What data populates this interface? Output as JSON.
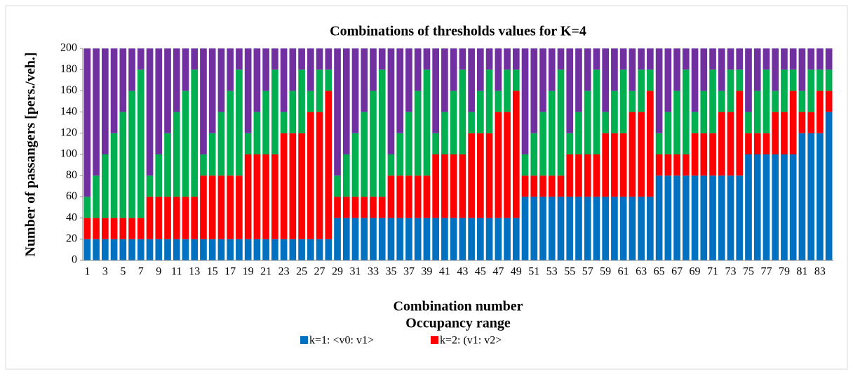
{
  "chart_data": {
    "type": "stacked_bar",
    "title": "Combinations of thresholds values for K=4",
    "x_label": "Combination number",
    "y_label": "Number of passangers [pers./veh.]",
    "legend_title": "Occupancy range",
    "categories": [
      1,
      null,
      3,
      null,
      5,
      null,
      7,
      null,
      9,
      null,
      11,
      null,
      13,
      null,
      15,
      null,
      17,
      null,
      19,
      null,
      21,
      null,
      23,
      null,
      25,
      null,
      27,
      null,
      29,
      null,
      31,
      null,
      33,
      null,
      35,
      null,
      37,
      null,
      39,
      null,
      41,
      null,
      43,
      null,
      45,
      null,
      47,
      null,
      49,
      null,
      51,
      null,
      53,
      null,
      55,
      null,
      57,
      null,
      59,
      null,
      61,
      null,
      63,
      null,
      65,
      null,
      67,
      null,
      69,
      null,
      71,
      null,
      73,
      null,
      75,
      null,
      77,
      null,
      79,
      null,
      81,
      null,
      83,
      null
    ],
    "ylim": [
      0,
      200
    ],
    "yticks": [
      0,
      20,
      40,
      60,
      80,
      100,
      120,
      140,
      160,
      180,
      200
    ],
    "series": [
      {
        "name": "k=1: <v0: v1>",
        "color": "#0070c0",
        "values": [
          20,
          20,
          20,
          20,
          20,
          20,
          20,
          20,
          20,
          20,
          20,
          20,
          20,
          20,
          20,
          20,
          20,
          20,
          20,
          20,
          20,
          20,
          20,
          20,
          20,
          20,
          20,
          20,
          40,
          40,
          40,
          40,
          40,
          40,
          40,
          40,
          40,
          40,
          40,
          40,
          40,
          40,
          40,
          40,
          40,
          40,
          40,
          40,
          40,
          60,
          60,
          60,
          60,
          60,
          60,
          60,
          60,
          60,
          60,
          60,
          60,
          60,
          60,
          60,
          80,
          80,
          80,
          80,
          80,
          80,
          80,
          80,
          80,
          80,
          100,
          100,
          100,
          100,
          100,
          100,
          120,
          120,
          120,
          140
        ]
      },
      {
        "name": "k=2: (v1: v2>",
        "color": "#ff0000",
        "values": [
          20,
          20,
          20,
          20,
          20,
          20,
          20,
          40,
          40,
          40,
          40,
          40,
          40,
          60,
          60,
          60,
          60,
          60,
          80,
          80,
          80,
          80,
          100,
          100,
          100,
          120,
          120,
          140,
          20,
          20,
          20,
          20,
          20,
          20,
          40,
          40,
          40,
          40,
          40,
          60,
          60,
          60,
          60,
          80,
          80,
          80,
          100,
          100,
          120,
          20,
          20,
          20,
          20,
          20,
          40,
          40,
          40,
          40,
          60,
          60,
          60,
          80,
          80,
          100,
          20,
          20,
          20,
          20,
          40,
          40,
          40,
          60,
          60,
          80,
          20,
          20,
          20,
          40,
          40,
          60,
          20,
          20,
          40,
          20
        ]
      },
      {
        "color": "#00b050",
        "values": [
          20,
          40,
          60,
          80,
          100,
          120,
          140,
          20,
          40,
          60,
          80,
          100,
          120,
          20,
          40,
          60,
          80,
          100,
          20,
          40,
          60,
          80,
          20,
          40,
          60,
          20,
          40,
          20,
          20,
          40,
          60,
          80,
          100,
          120,
          20,
          40,
          60,
          80,
          100,
          20,
          40,
          60,
          80,
          20,
          40,
          60,
          20,
          40,
          20,
          20,
          40,
          60,
          80,
          100,
          20,
          40,
          60,
          80,
          20,
          40,
          60,
          20,
          40,
          20,
          20,
          40,
          60,
          80,
          20,
          40,
          60,
          20,
          40,
          20,
          20,
          40,
          60,
          20,
          40,
          20,
          20,
          40,
          20,
          20
        ]
      },
      {
        "color": "#7030a0",
        "values": [
          140,
          120,
          100,
          80,
          60,
          40,
          20,
          120,
          100,
          80,
          60,
          40,
          20,
          100,
          80,
          60,
          40,
          20,
          80,
          60,
          40,
          20,
          60,
          40,
          20,
          40,
          20,
          20,
          120,
          100,
          80,
          60,
          40,
          20,
          100,
          80,
          60,
          40,
          20,
          80,
          60,
          40,
          20,
          60,
          40,
          20,
          40,
          20,
          20,
          100,
          80,
          60,
          40,
          20,
          80,
          60,
          40,
          20,
          60,
          40,
          20,
          40,
          20,
          20,
          80,
          60,
          40,
          20,
          60,
          40,
          20,
          40,
          20,
          20,
          60,
          40,
          20,
          40,
          20,
          20,
          40,
          20,
          20,
          20
        ]
      }
    ]
  }
}
